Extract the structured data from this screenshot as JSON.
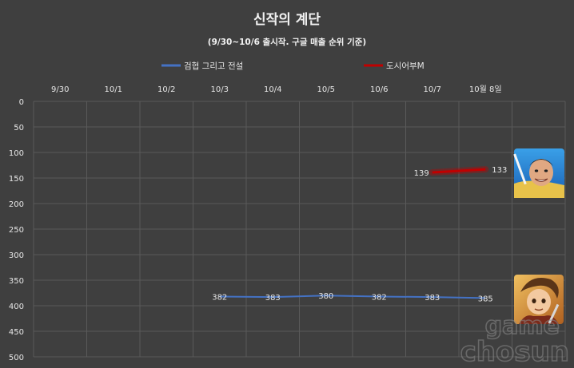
{
  "chart_data": {
    "type": "line",
    "title": "신작의 계단",
    "subtitle": "(9/30~10/6 출시작. 구글 매출 순위 기준)",
    "categories": [
      "9/30",
      "10/1",
      "10/2",
      "10/3",
      "10/4",
      "10/5",
      "10/6",
      "10/7",
      "10월 8일"
    ],
    "y_ticks": [
      "0",
      "50",
      "100",
      "150",
      "200",
      "250",
      "300",
      "350",
      "400",
      "450",
      "500"
    ],
    "ylim": [
      0,
      500
    ],
    "y_inverted": true,
    "grid": true,
    "legend_position": "top",
    "series": [
      {
        "name": "검협 그리고 전설",
        "color": "#4472c4",
        "values": [
          null,
          null,
          null,
          382,
          383,
          380,
          382,
          383,
          385
        ],
        "labels": [
          "",
          "",
          "",
          "382",
          "383",
          "380",
          "382",
          "383",
          "385"
        ]
      },
      {
        "name": "도시어부M",
        "color": "#c00000",
        "values": [
          null,
          null,
          null,
          null,
          null,
          null,
          null,
          139,
          133
        ],
        "labels": [
          "",
          "",
          "",
          "",
          "",
          "",
          "",
          "139",
          "133"
        ]
      }
    ]
  },
  "watermark": {
    "line1": "game",
    "line2": "chosun"
  },
  "colors": {
    "background": "#3f3f3f",
    "grid": "#5a5a5a"
  },
  "icons": [
    "fishing-game-icon",
    "sword-hero-game-icon"
  ]
}
